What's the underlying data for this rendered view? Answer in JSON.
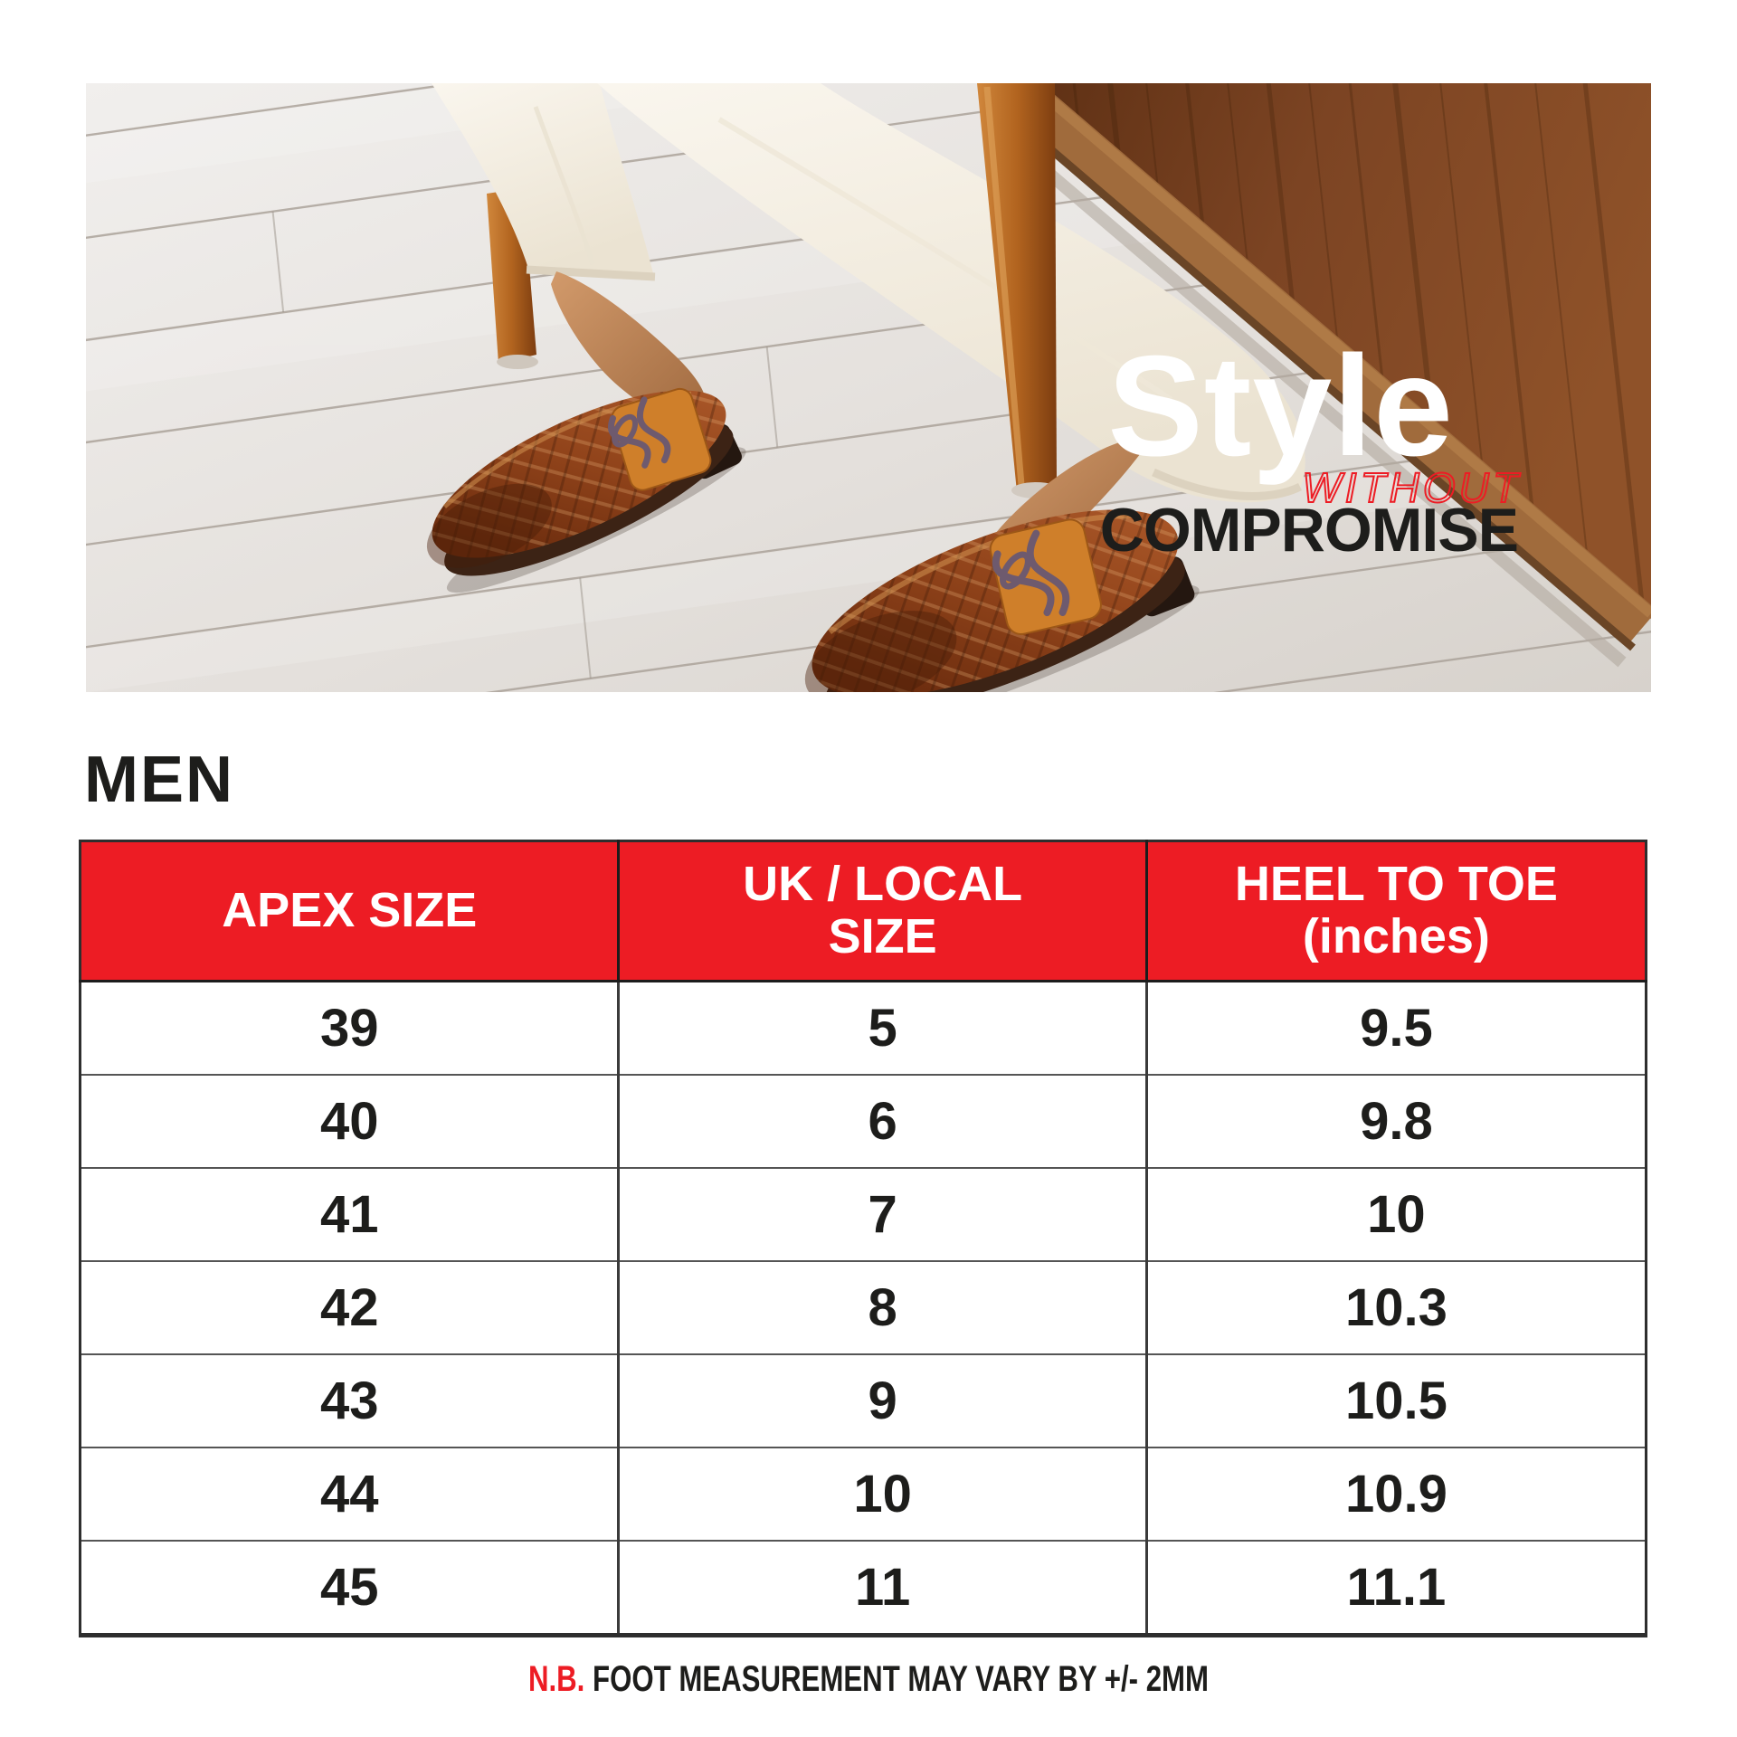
{
  "hero": {
    "headline": {
      "line1": "Style",
      "line2": "WITHOUT",
      "line3": "COMPROMISE"
    }
  },
  "section_title": "MEN",
  "size_table": {
    "header": {
      "col1_line1": "APEX SIZE",
      "col2_line1": "UK / LOCAL",
      "col2_line2": "SIZE",
      "col3_line1": "HEEL TO TOE",
      "col3_line2": "(inches)"
    },
    "rows": [
      {
        "apex": "39",
        "uk": "5",
        "heel": "9.5"
      },
      {
        "apex": "40",
        "uk": "6",
        "heel": "9.8"
      },
      {
        "apex": "41",
        "uk": "7",
        "heel": "10"
      },
      {
        "apex": "42",
        "uk": "8",
        "heel": "10.3"
      },
      {
        "apex": "43",
        "uk": "9",
        "heel": "10.5"
      },
      {
        "apex": "44",
        "uk": "10",
        "heel": "10.9"
      },
      {
        "apex": "45",
        "uk": "11",
        "heel": "11.1"
      }
    ]
  },
  "note": {
    "prefix": "N.B.",
    "text": "FOOT MEASUREMENT MAY VARY BY +/- 2MM"
  },
  "colors": {
    "accent_red": "#ED1C24",
    "text_black": "#1D1D1B",
    "header_text": "#FFFFFF"
  }
}
